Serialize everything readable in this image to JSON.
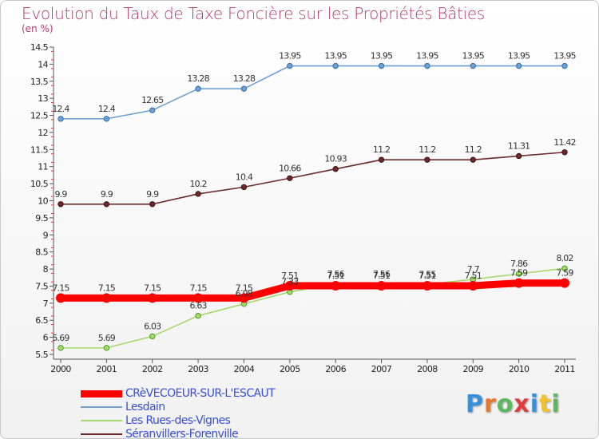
{
  "header": {
    "title": "Evolution du Taux de Taxe Foncière sur les Propriétés Bâties",
    "subtitle": "(en %)"
  },
  "logo": {
    "text": "Proxiti",
    "letters": [
      "P",
      "r",
      "o",
      "x",
      "i",
      "t",
      "i"
    ],
    "colors": [
      "#3a8fd6",
      "#e8762b",
      "#5cb85c",
      "#e23b3b",
      "#3a8fd6",
      "#f2c12e",
      "#5cb85c"
    ]
  },
  "chart_data": {
    "type": "line",
    "title": "Evolution du Taux de Taxe Foncière sur les Propriétés Bâties",
    "subtitle": "(en %)",
    "xlabel": "",
    "ylabel": "",
    "x": [
      "2000",
      "2001",
      "2002",
      "2003",
      "2004",
      "2005",
      "2006",
      "2007",
      "2008",
      "2009",
      "2010",
      "2011"
    ],
    "ylim": [
      5.5,
      14.5
    ],
    "yticks": [
      "5.5",
      "6",
      "6.5",
      "7",
      "7.5",
      "8",
      "8.5",
      "9",
      "9.5",
      "10",
      "10.5",
      "11",
      "11.5",
      "12",
      "12.5",
      "13",
      "13.5",
      "14",
      "14.5"
    ],
    "grid": false,
    "legend_position": "bottom-left",
    "series": [
      {
        "name": "CRèVECOEUR-SUR-L'ESCAUT",
        "color": "#ff0000",
        "values": [
          7.15,
          7.15,
          7.15,
          7.15,
          7.15,
          7.51,
          7.51,
          7.51,
          7.51,
          7.51,
          7.59,
          7.59
        ],
        "labels": [
          "7.15",
          "7.15",
          "7.15",
          "7.15",
          "7.15",
          "7.51",
          "7.51",
          "7.51",
          "7.51",
          "7.51",
          "7.59",
          "7.59"
        ]
      },
      {
        "name": "Lesdain",
        "color": "#6fa0cf",
        "values": [
          12.4,
          12.4,
          12.65,
          13.28,
          13.28,
          13.95,
          13.95,
          13.95,
          13.95,
          13.95,
          13.95,
          13.95
        ],
        "labels": [
          "12.4",
          "12.4",
          "12.65",
          "13.28",
          "13.28",
          "13.95",
          "13.95",
          "13.95",
          "13.95",
          "13.95",
          "13.95",
          "13.95"
        ]
      },
      {
        "name": "Les Rues-des-Vignes",
        "color": "#a6d86e",
        "values": [
          5.69,
          5.69,
          6.03,
          6.63,
          6.98,
          7.33,
          7.56,
          7.56,
          7.55,
          7.7,
          7.86,
          8.02
        ],
        "labels": [
          "5.69",
          "5.69",
          "6.03",
          "6.63",
          "6.98",
          "7.33",
          "7.56",
          "7.56",
          "7.55",
          "7.7",
          "7.86",
          "8.02"
        ]
      },
      {
        "name": "Séranvillers-Forenville",
        "color": "#6b2a2a",
        "values": [
          9.9,
          9.9,
          9.9,
          10.2,
          10.4,
          10.66,
          10.93,
          11.2,
          11.2,
          11.2,
          11.31,
          11.42
        ],
        "labels": [
          "9.9",
          "9.9",
          "9.9",
          "10.2",
          "10.4",
          "10.66",
          "10.93",
          "11.2",
          "11.2",
          "11.2",
          "11.31",
          "11.42"
        ]
      }
    ]
  }
}
